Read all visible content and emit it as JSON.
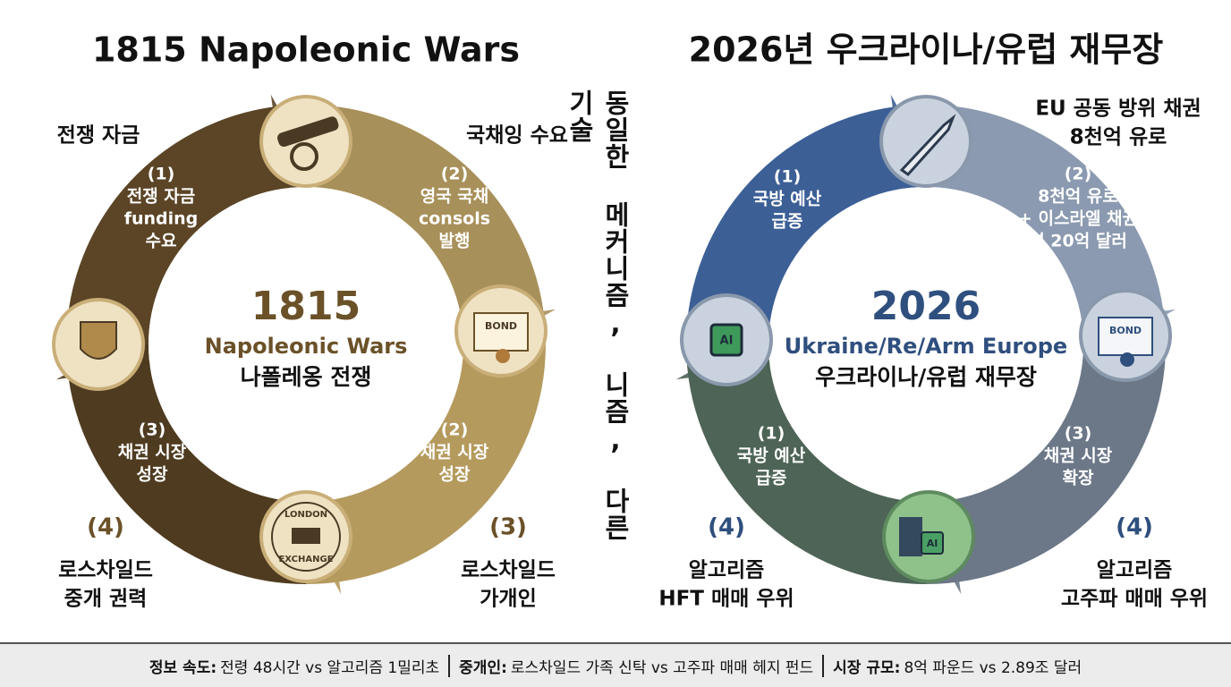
{
  "left": {
    "title": "1815 Napoleonic Wars",
    "center": {
      "year": "1815",
      "english": "Napoleonic Wars",
      "korean": "나폴레옹 전쟁"
    },
    "icons": {
      "bond": "BOND",
      "exchange_top": "LONDON",
      "exchange_bottom": "EXCHANGE"
    },
    "segments": [
      {
        "lines": [
          "(1)",
          "전쟁 자금",
          "funding",
          "수요"
        ]
      },
      {
        "lines": [
          "(2)",
          "영국 국채",
          "consols",
          "발행"
        ]
      },
      {
        "lines": [
          "(2)",
          "채권 시장",
          "성장"
        ]
      },
      {
        "lines": [
          "(3)",
          "채권 시장",
          "성장"
        ]
      }
    ],
    "outer": [
      {
        "lines": [
          "전쟁 자금"
        ]
      },
      {
        "lines": [
          "국채잉 수요"
        ]
      },
      {
        "number": "(3)",
        "lines": [
          "로스차일드",
          "가개인"
        ]
      },
      {
        "number": "(4)",
        "lines": [
          "로스차일드",
          "중개 권력"
        ]
      }
    ]
  },
  "middle": {
    "text": "동일한 메커니즘, 니즘, 다른 기술"
  },
  "right": {
    "title": "2026년 우크라이나/유럽 재무장",
    "center": {
      "year": "2026",
      "english": "Ukraine/Re/Arm Europe",
      "korean": "우크라이나/유럽 재무장"
    },
    "icons": {
      "bond": "BOND",
      "chip_left": "AI",
      "chip_bottom": "AI"
    },
    "segments": [
      {
        "lines": [
          "(1)",
          "국방 예산",
          "급증"
        ]
      },
      {
        "lines": [
          "(2)",
          "8천억 유로",
          "+ 이스라엘 채권",
          "연 20억 달러"
        ]
      },
      {
        "lines": [
          "(3)",
          "채권 시장",
          "확장"
        ]
      },
      {
        "lines": [
          "(1)",
          "국방 예산",
          "급증"
        ]
      }
    ],
    "outer": [
      {
        "lines": [
          "EU 공동 방위 채권",
          "8천억 유로"
        ]
      },
      {
        "number": "(4)",
        "lines": [
          "알고리즘",
          "고주파 매매 우위"
        ]
      },
      {
        "number": "(4)",
        "lines": [
          "알고리즘",
          "HFT 매매 우위"
        ]
      }
    ]
  },
  "footer": [
    {
      "label": "정보 속도:",
      "text": "전령 48시간 vs 알고리즘 1밀리초"
    },
    {
      "label": "중개인:",
      "text": "로스차일드 가족 신탁 vs 고주파 매매 헤지 펀드"
    },
    {
      "label": "시장 규모:",
      "text": "8억 파운드 vs 2.89조 달러"
    }
  ]
}
